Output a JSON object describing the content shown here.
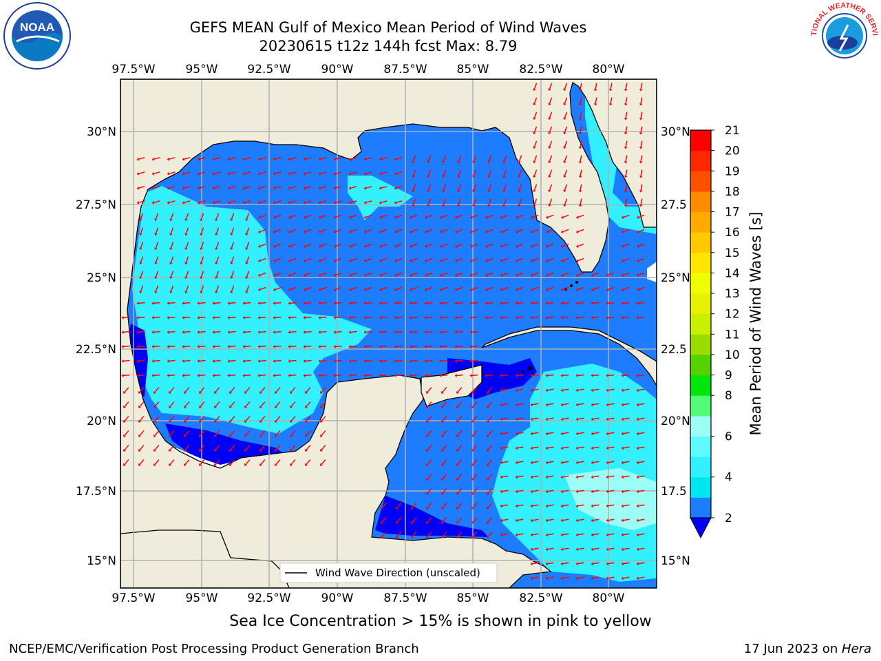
{
  "title_line1": "GEFS MEAN Gulf of Mexico Mean Period of Wind Waves",
  "title_line2": "20230615 t12z 144h fcst   Max: 8.79",
  "lon_ticks": [
    "97.5°W",
    "95°W",
    "92.5°W",
    "90°W",
    "87.5°W",
    "85°W",
    "82.5°W",
    "80°W"
  ],
  "lat_ticks": [
    "30°N",
    "27.5°N",
    "25°N",
    "22.5°N",
    "20°N",
    "17.5°N",
    "15°N"
  ],
  "right_lat_ticks": [
    "30°N",
    "27.5",
    "25°N",
    "22.5",
    "20°N",
    "17.5",
    "15°N"
  ],
  "extent": {
    "lon_min": -98.0,
    "lon_max": -78.3,
    "lat_min": 14.0,
    "lat_max": 31.6
  },
  "colorbar": {
    "label": "Mean Period of Wind Waves [s]",
    "levels": [
      2,
      3,
      4,
      5,
      6,
      7,
      8,
      9,
      10,
      11,
      12,
      13,
      14,
      15,
      16,
      17,
      18,
      19,
      20,
      21
    ],
    "tick_labels": [
      "2",
      "4",
      "6",
      "8",
      "9",
      "10",
      "11",
      "12",
      "13",
      "14",
      "15",
      "16",
      "17",
      "18",
      "19",
      "20",
      "21"
    ],
    "colors": [
      "#1e7cff",
      "#00e6f0",
      "#33f0ff",
      "#5ffcff",
      "#9cfcf6",
      "#55fa78",
      "#00e60a",
      "#55d200",
      "#9adc00",
      "#c8f000",
      "#e6f000",
      "#f0ff00",
      "#ffe600",
      "#ffc800",
      "#ffaa00",
      "#ff8c00",
      "#ff5000",
      "#ff2800",
      "#ff0000"
    ],
    "under_color": "#0000f5"
  },
  "colors": {
    "land": "#efecdc",
    "coast": "#000000",
    "grid": "#b0b0b0",
    "arrow": "#ff0000",
    "period_2_4": "#1e7cff",
    "period_4_6": "#33f0ff",
    "period_below_2": "#0000f5"
  },
  "legend": {
    "label": "Wind Wave Direction (unscaled)"
  },
  "sea_ice_note": "Sea Ice Concentration > 15% is shown in pink to yellow",
  "credit": "NCEP/EMC/Verification Post Processing Product Generation Branch",
  "run_date": "17 Jun 2023 on ",
  "run_host": "Hera",
  "logos": {
    "left": "NOAA",
    "right": "NATIONAL WEATHER SERVICE"
  }
}
